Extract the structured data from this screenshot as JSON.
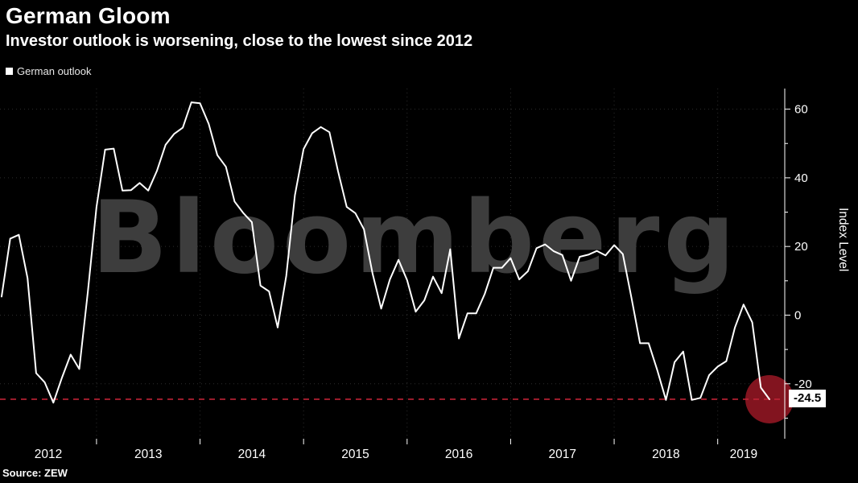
{
  "header": {
    "title": "German Gloom",
    "subtitle": "Investor outlook is worsening, close to the lowest since 2012"
  },
  "legend": {
    "items": [
      {
        "label": "German outlook",
        "marker_color": "#ffffff"
      }
    ]
  },
  "watermark": "Bloomberg",
  "source": "Source: ZEW",
  "chart_data": {
    "type": "line",
    "title": "German Gloom",
    "subtitle": "Investor outlook is worsening, close to the lowest since 2012",
    "ylabel": "Index Level",
    "frequency": "monthly",
    "x_start": "2012-02",
    "x_end": "2019-07",
    "year_labels": [
      "2012",
      "2013",
      "2014",
      "2015",
      "2016",
      "2017",
      "2018",
      "2019"
    ],
    "y_major_ticks": [
      60,
      40,
      20,
      0,
      -20
    ],
    "y_minor_ticks": [
      50,
      30,
      10,
      -10,
      -30
    ],
    "ylim": [
      -36,
      66
    ],
    "grid": "dotted",
    "legend_position": "top-left",
    "background_color": "#000000",
    "series": [
      {
        "name": "German outlook",
        "color": "#ffffff",
        "values": [
          5.4,
          22.3,
          23.4,
          10.8,
          -16.9,
          -19.6,
          -25.5,
          -18.2,
          -11.5,
          -15.7,
          6.9,
          31.5,
          48.2,
          48.5,
          36.3,
          36.4,
          38.5,
          36.3,
          42.0,
          49.6,
          52.8,
          54.6,
          62.0,
          61.7,
          55.7,
          46.6,
          43.2,
          33.1,
          29.8,
          27.1,
          8.6,
          6.9,
          -3.6,
          11.5,
          34.9,
          48.4,
          53.0,
          54.8,
          53.3,
          41.9,
          31.5,
          29.7,
          25.0,
          12.1,
          1.9,
          10.4,
          16.1,
          10.2,
          1.0,
          4.3,
          11.2,
          6.4,
          19.2,
          -6.8,
          0.5,
          0.5,
          6.2,
          13.8,
          13.8,
          16.6,
          10.4,
          12.8,
          19.5,
          20.6,
          18.6,
          17.5,
          10.0,
          17.0,
          17.6,
          18.7,
          17.4,
          20.4,
          17.8,
          5.1,
          -8.2,
          -8.2,
          -16.1,
          -24.7,
          -13.7,
          -10.6,
          -24.7,
          -24.1,
          -17.5,
          -15.0,
          -13.4,
          -3.6,
          3.1,
          -2.1,
          -21.1,
          -24.5
        ]
      }
    ],
    "annotations": {
      "dashed_line": {
        "value": -24.5,
        "color": "#bf2336",
        "style": "dashed"
      },
      "last_point": {
        "value": -24.5,
        "label": "-24.5",
        "highlight": "circle",
        "circle_color": "#82141f",
        "label_bg": "#ffffff",
        "label_color": "#000000"
      }
    },
    "watermark_text": "Bloomberg",
    "watermark_color": "#3d3d3d"
  }
}
